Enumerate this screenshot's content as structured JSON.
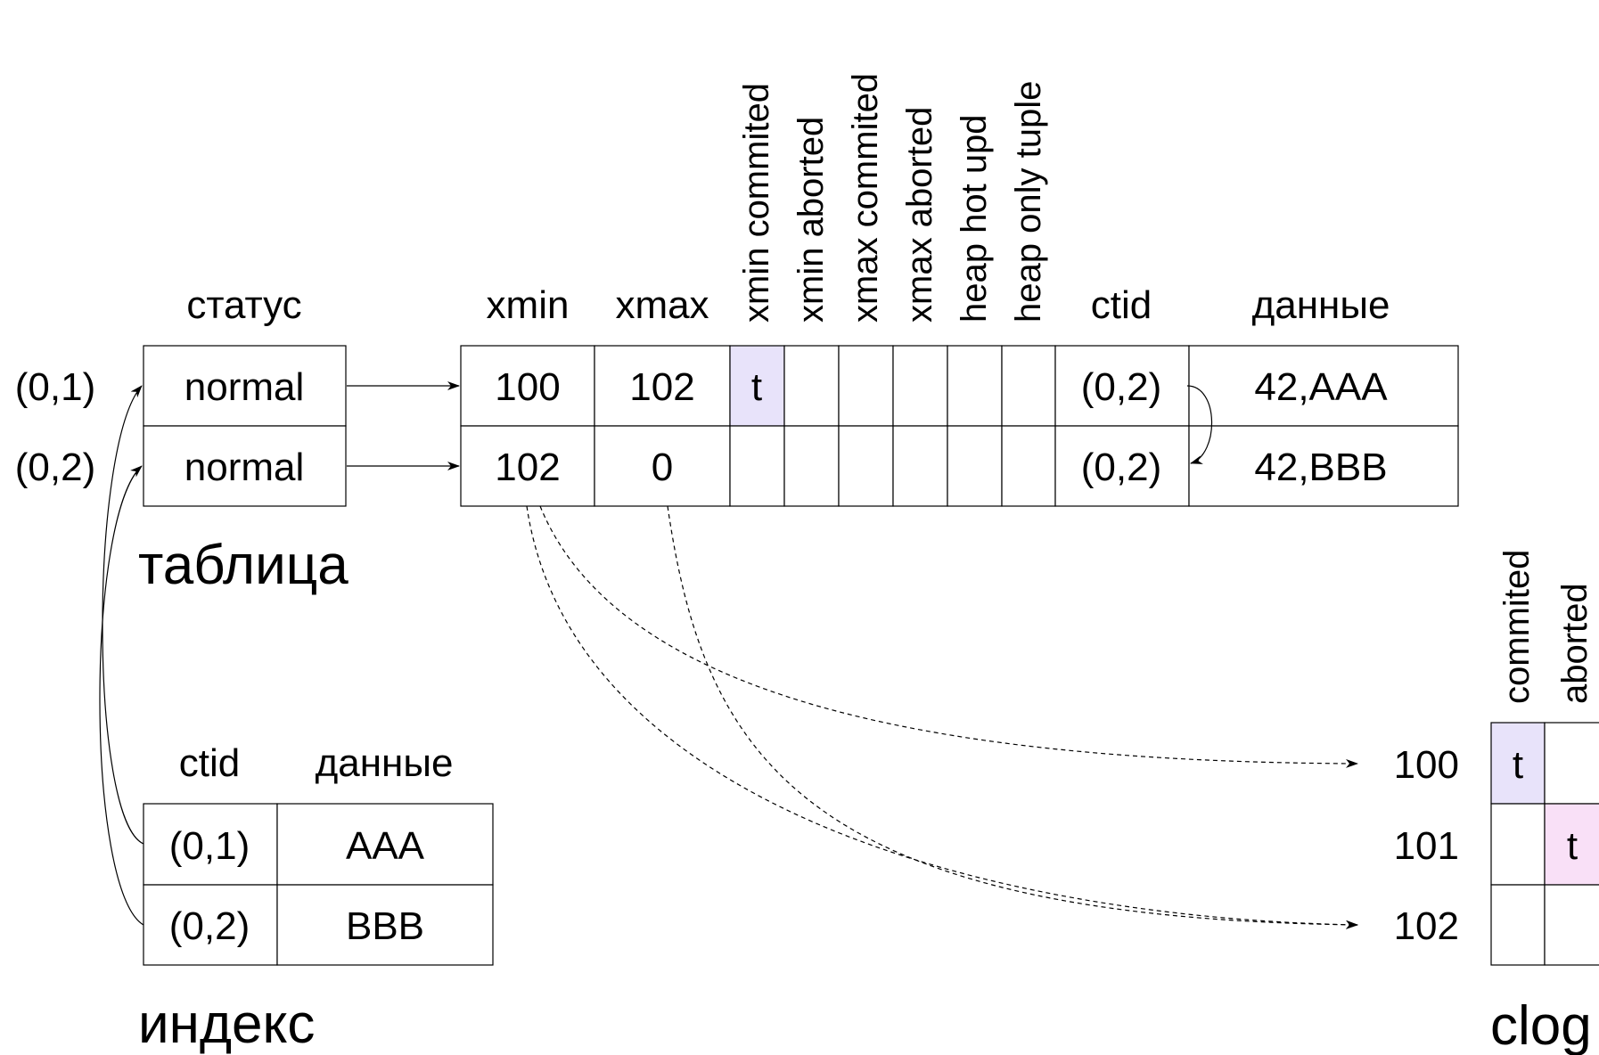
{
  "colors": {
    "committed_fill": "#e8e3fa",
    "aborted_fill": "#f9e0f7"
  },
  "table": {
    "title": "таблица",
    "status_header": "статус",
    "status": [
      "normal",
      "normal"
    ],
    "row_pointers": [
      "(0,1)",
      "(0,2)"
    ],
    "headers": {
      "xmin": "xmin",
      "xmax": "xmax",
      "ctid": "ctid",
      "data": "данные",
      "flags": [
        "xmin commited",
        "xmin aborted",
        "xmax commited",
        "xmax aborted",
        "heap hot upd",
        "heap only tuple"
      ]
    },
    "rows": [
      {
        "xmin": "100",
        "xmax": "102",
        "flags": [
          "t",
          "",
          "",
          "",
          "",
          ""
        ],
        "ctid": "(0,2)",
        "data": "42,AAA"
      },
      {
        "xmin": "102",
        "xmax": "0",
        "flags": [
          "",
          "",
          "",
          "",
          "",
          ""
        ],
        "ctid": "(0,2)",
        "data": "42,BBB"
      }
    ]
  },
  "index": {
    "title": "индекс",
    "headers": {
      "ctid": "ctid",
      "data": "данные"
    },
    "rows": [
      {
        "ctid": "(0,1)",
        "data": "AAA"
      },
      {
        "ctid": "(0,2)",
        "data": "BBB"
      }
    ]
  },
  "clog": {
    "title": "clog",
    "headers": [
      "commited",
      "aborted"
    ],
    "rows": [
      {
        "xid": "100",
        "committed": "t",
        "aborted": ""
      },
      {
        "xid": "101",
        "committed": "",
        "aborted": "t"
      },
      {
        "xid": "102",
        "committed": "",
        "aborted": ""
      }
    ]
  }
}
